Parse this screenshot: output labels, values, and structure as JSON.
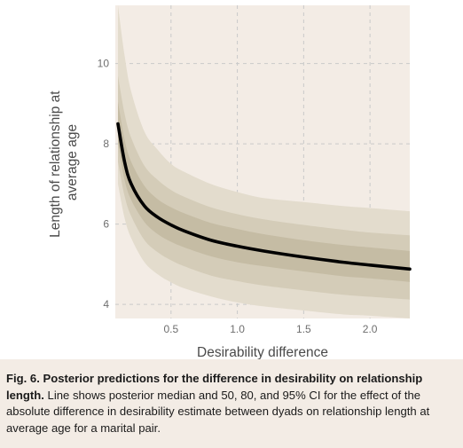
{
  "chart_data": {
    "type": "area",
    "title": "",
    "xlabel": "Desirability difference",
    "ylabel_lines": [
      "Length of relationship at",
      "average age"
    ],
    "xlim": [
      0.08,
      2.3
    ],
    "ylim": [
      3.65,
      11.45
    ],
    "x_ticks": [
      0.5,
      1.0,
      1.5,
      2.0
    ],
    "x_tick_labels": [
      "0.5",
      "1.0",
      "1.5",
      "2.0"
    ],
    "y_ticks": [
      4,
      6,
      8,
      10
    ],
    "y_tick_labels": [
      "4",
      "6",
      "8",
      "10"
    ],
    "grid": true,
    "x": [
      0.1,
      0.15,
      0.2,
      0.3,
      0.4,
      0.5,
      0.6,
      0.8,
      1.0,
      1.2,
      1.5,
      1.8,
      2.0,
      2.3
    ],
    "median": [
      8.5,
      7.55,
      7.0,
      6.45,
      6.17,
      5.98,
      5.83,
      5.6,
      5.45,
      5.33,
      5.18,
      5.05,
      4.98,
      4.88
    ],
    "bands": [
      {
        "level": "95%",
        "color": "#e3dccd",
        "lower": [
          7.0,
          6.15,
          5.65,
          5.05,
          4.75,
          4.55,
          4.4,
          4.2,
          4.05,
          3.95,
          3.85,
          3.75,
          3.72,
          3.65
        ],
        "upper": [
          11.45,
          10.2,
          9.3,
          8.3,
          7.85,
          7.5,
          7.3,
          7.0,
          6.8,
          6.65,
          6.55,
          6.45,
          6.4,
          6.32
        ]
      },
      {
        "level": "80%",
        "color": "#d4ccb8",
        "lower": [
          7.55,
          6.7,
          6.2,
          5.6,
          5.3,
          5.1,
          4.95,
          4.72,
          4.58,
          4.47,
          4.35,
          4.24,
          4.19,
          4.12
        ],
        "upper": [
          9.7,
          8.75,
          8.15,
          7.45,
          7.1,
          6.85,
          6.68,
          6.42,
          6.25,
          6.12,
          5.98,
          5.86,
          5.79,
          5.72
        ]
      },
      {
        "level": "50%",
        "color": "#c5bca4",
        "lower": [
          8.0,
          7.1,
          6.6,
          6.05,
          5.75,
          5.56,
          5.42,
          5.2,
          5.05,
          4.95,
          4.82,
          4.7,
          4.65,
          4.56
        ],
        "upper": [
          9.05,
          8.1,
          7.55,
          6.95,
          6.62,
          6.42,
          6.27,
          6.03,
          5.88,
          5.75,
          5.6,
          5.48,
          5.42,
          5.33
        ]
      }
    ],
    "line_color": "#000000",
    "background": "#f3ece5",
    "grid_color": "#c9c9c9"
  },
  "caption": {
    "bold": "Fig. 6. Posterior predictions for the difference in desirability on relationship length.",
    "body": " Line shows posterior median and 50, 80, and 95% CI for the effect of the absolute difference in desirability estimate between dyads on relationship length at average age for a marital pair."
  }
}
